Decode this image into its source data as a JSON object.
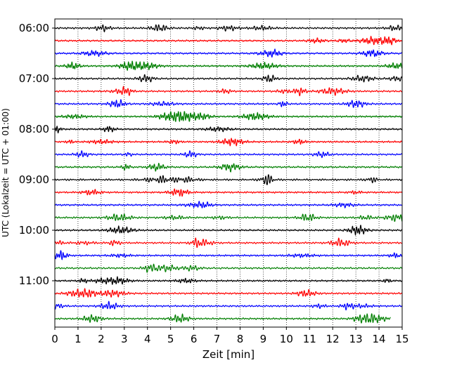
{
  "chart_data": {
    "type": "line",
    "title": "",
    "xlabel": "Zeit  [min]",
    "ylabel": "UTC (Lokalzeit = UTC + 01:00)",
    "xlim": [
      0,
      15
    ],
    "x_ticks": [
      "0",
      "1",
      "2",
      "3",
      "4",
      "5",
      "6",
      "7",
      "8",
      "9",
      "10",
      "11",
      "12",
      "13",
      "14",
      "15"
    ],
    "y_ticks": [
      "06:00",
      "07:00",
      "08:00",
      "09:00",
      "10:00",
      "11:00"
    ],
    "grid": "vertical dotted lines at each minute",
    "legend": "none",
    "trace_colors": [
      "#000000",
      "#ff0000",
      "#0000ff",
      "#007f00"
    ],
    "trace_interval_min": 15,
    "start_time": "06:00",
    "trace_count": 24,
    "last_trace_end_min": 14.5
  }
}
